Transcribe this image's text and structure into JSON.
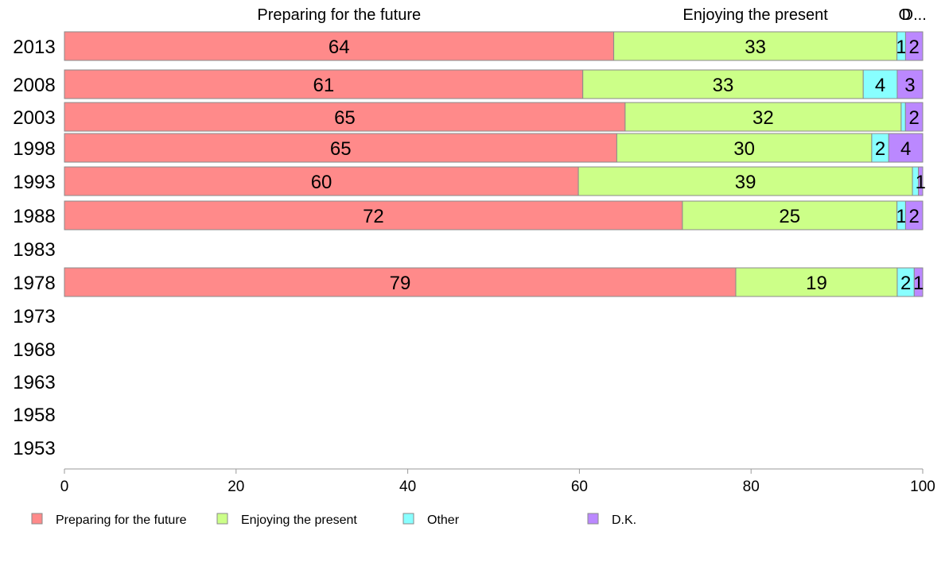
{
  "chart_data": {
    "type": "bar",
    "orientation": "horizontal",
    "stacked": true,
    "categories": [
      "2013",
      "2008",
      "2003",
      "1998",
      "1993",
      "1988",
      "1983",
      "1978",
      "1973",
      "1968",
      "1963",
      "1958",
      "1953"
    ],
    "series": [
      {
        "name": "Preparing for the future",
        "color": "#ff8a8a",
        "values": [
          64,
          61,
          65,
          65,
          60,
          72,
          null,
          79,
          null,
          null,
          null,
          null,
          null
        ],
        "labels": [
          "64",
          "61",
          "65",
          "65",
          "60",
          "72",
          "",
          "79",
          "",
          "",
          "",
          "",
          ""
        ]
      },
      {
        "name": "Enjoying the present",
        "color": "#ccff88",
        "values": [
          33,
          33,
          32,
          30,
          39,
          25,
          null,
          19,
          null,
          null,
          null,
          null,
          null
        ],
        "labels": [
          "33",
          "33",
          "32",
          "30",
          "39",
          "25",
          "",
          "19",
          "",
          "",
          "",
          "",
          ""
        ]
      },
      {
        "name": "Other",
        "color": "#88ffff",
        "values": [
          1,
          4,
          0.5,
          2,
          0.7,
          1,
          null,
          2,
          null,
          null,
          null,
          null,
          null
        ],
        "labels": [
          "1",
          "4",
          "",
          "2",
          "",
          "1",
          "",
          "2",
          "",
          "",
          "",
          "",
          ""
        ]
      },
      {
        "name": "D.K.",
        "color": "#bb88ff",
        "values": [
          2,
          3,
          2,
          4,
          0.5,
          2,
          null,
          1,
          null,
          null,
          null,
          null,
          null
        ],
        "labels": [
          "2",
          "3",
          "2",
          "4",
          "1",
          "2",
          "",
          "1",
          "",
          "",
          "",
          "",
          ""
        ]
      }
    ],
    "segment_labels_top": [
      {
        "text": "Preparing for the future",
        "x": 32
      },
      {
        "text": "Enjoying the present",
        "x": 80.5
      },
      {
        "text": "O",
        "x": 97.9
      },
      {
        "text": "D...",
        "x": 99
      }
    ],
    "xaxis": {
      "min": 0,
      "max": 100,
      "ticks": [
        0,
        20,
        40,
        60,
        80,
        100
      ]
    },
    "grid": false,
    "legend_position": "bottom"
  },
  "legend": {
    "items": [
      {
        "label": "Preparing for the future",
        "color": "#ff8a8a"
      },
      {
        "label": "Enjoying the present",
        "color": "#ccff88"
      },
      {
        "label": "Other",
        "color": "#88ffff"
      },
      {
        "label": "D.K.",
        "color": "#bb88ff"
      }
    ]
  }
}
